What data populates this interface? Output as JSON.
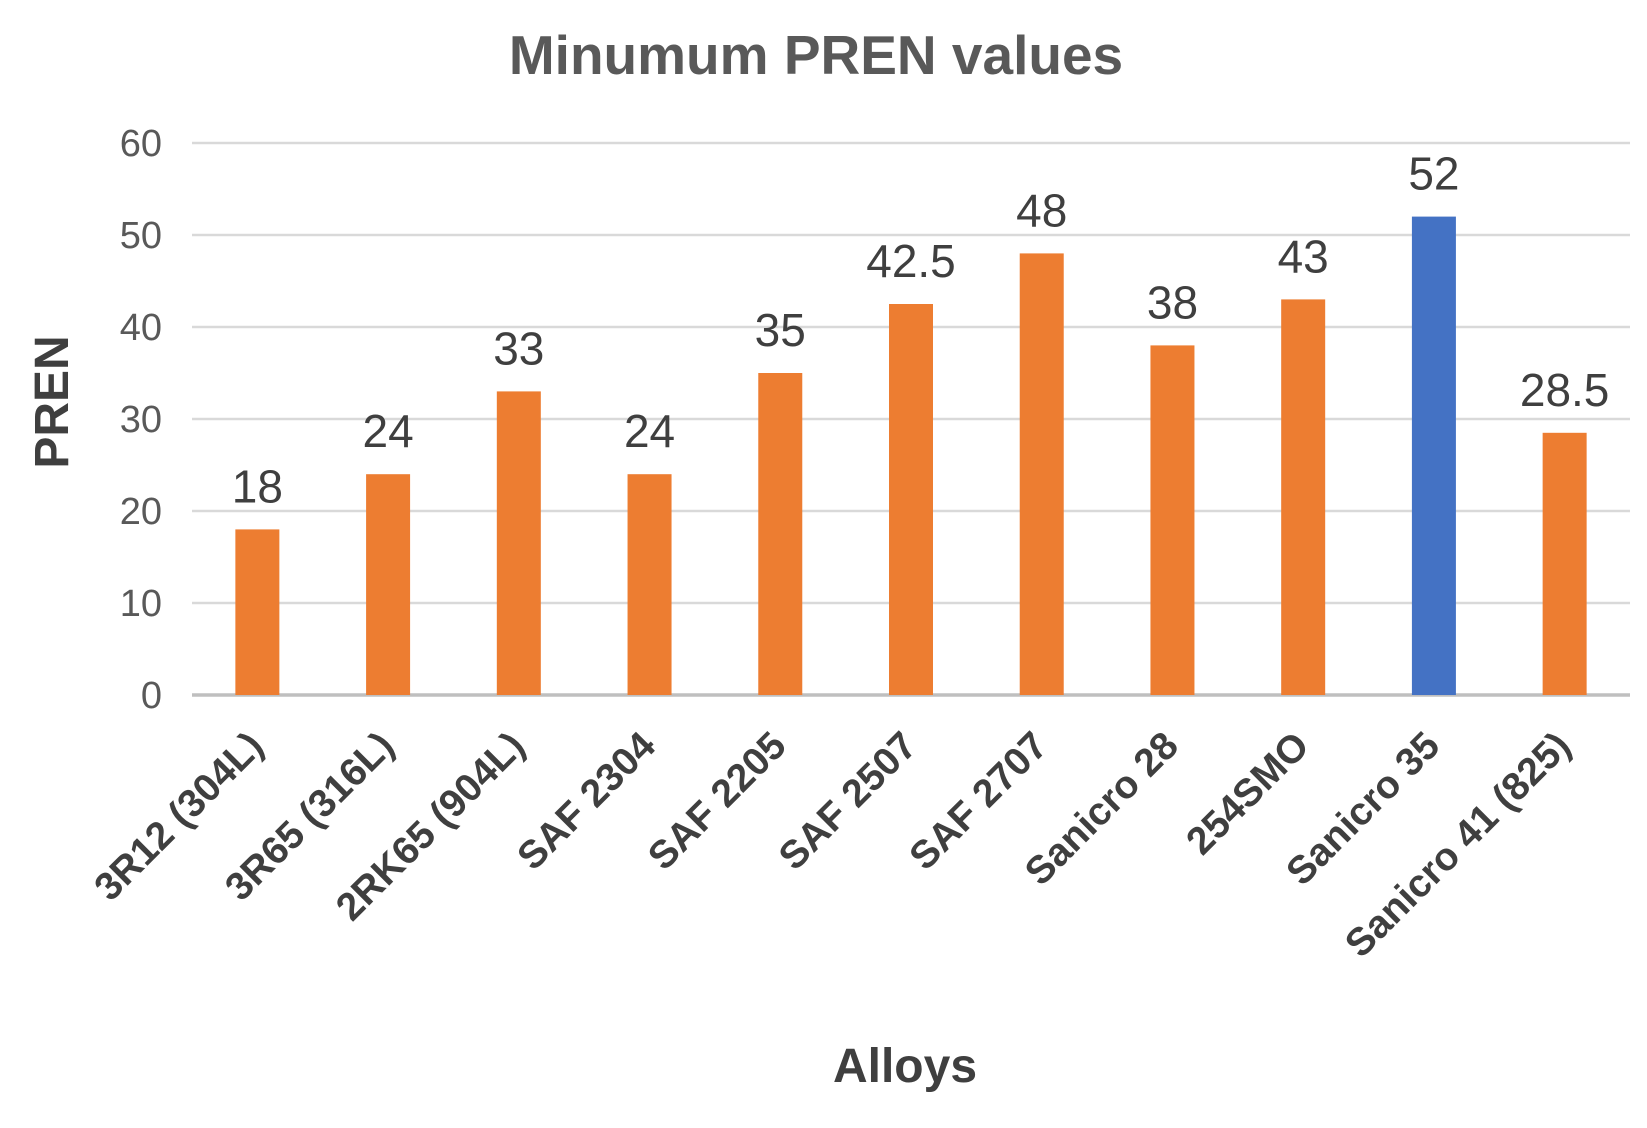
{
  "chart_data": {
    "type": "bar",
    "title": "Minumum PREN values",
    "xlabel": "Alloys",
    "ylabel": "PREN",
    "categories": [
      "3R12 (304L)",
      "3R65 (316L)",
      "2RK65 (904L)",
      "SAF 2304",
      "SAF 2205",
      "SAF 2507",
      "SAF 2707",
      "Sanicro 28",
      "254SMO",
      "Sanicro 35",
      "Sanicro 41 (825)"
    ],
    "values": [
      18,
      24,
      33,
      24,
      35,
      42.5,
      48,
      38,
      43,
      52,
      28.5
    ],
    "bar_colors": [
      "#ED7D31",
      "#ED7D31",
      "#ED7D31",
      "#ED7D31",
      "#ED7D31",
      "#ED7D31",
      "#ED7D31",
      "#ED7D31",
      "#ED7D31",
      "#4472C4",
      "#ED7D31"
    ],
    "default_bar_color": "#ED7D31",
    "highlight": {
      "category": "Sanicro 35",
      "color": "#4472C4"
    },
    "ylim": [
      0,
      60
    ],
    "yticks": [
      0,
      10,
      20,
      30,
      40,
      50,
      60
    ],
    "grid": true,
    "legend_position": "none",
    "value_labels_shown": true
  },
  "colors": {
    "series_orange": "#ED7D31",
    "series_blue_highlight": "#4472C4",
    "gridline": "#D9D9D9",
    "axis_line": "#BFBFBF",
    "tick_text": "#595959",
    "title_text": "#595959",
    "label_text": "#3F3F3F"
  }
}
